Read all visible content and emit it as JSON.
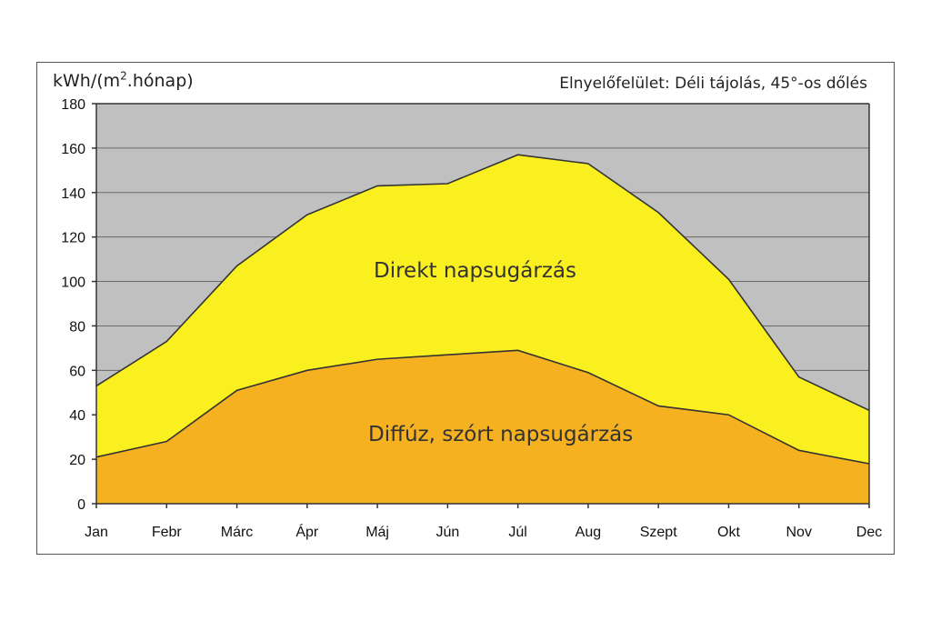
{
  "chart_data": {
    "type": "area",
    "stacked": true,
    "annotation": "Elnyelőfelület: Déli tájolás, 45°-os dőlés",
    "ylabel_main": "kWh/(m",
    "ylabel_sup": "2",
    "ylabel_rest": ".hónap)",
    "ylim": [
      0,
      180
    ],
    "yticks": [
      0,
      20,
      40,
      60,
      80,
      100,
      120,
      140,
      160,
      180
    ],
    "grid": true,
    "categories": [
      "Jan",
      "Febr",
      "Márc",
      "Ápr",
      "Máj",
      "Jún",
      "Júl",
      "Aug",
      "Szept",
      "Okt",
      "Nov",
      "Dec"
    ],
    "series": [
      {
        "name": "Diffúz, szórt napsugárzás",
        "color": "#f5b120",
        "values": [
          21,
          28,
          51,
          60,
          65,
          67,
          69,
          59,
          44,
          40,
          24,
          18
        ]
      },
      {
        "name": "Direkt napsugárzás",
        "color": "#fbf01f",
        "totals": [
          53,
          73,
          107,
          130,
          143,
          144,
          157,
          153,
          131,
          101,
          57,
          42
        ]
      }
    ],
    "plot_background": "#c0c0c0"
  }
}
